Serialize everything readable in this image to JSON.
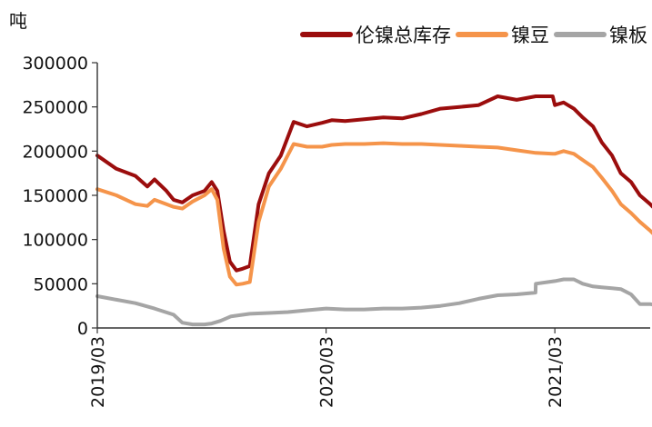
{
  "chart_data": {
    "type": "line",
    "title": "",
    "ylabel": "吨",
    "xlabel": "",
    "ylim": [
      0,
      300000
    ],
    "yticks": [
      0,
      50000,
      100000,
      150000,
      200000,
      250000,
      300000
    ],
    "ytick_labels": [
      "0",
      "50000",
      "100000",
      "150000",
      "200000",
      "250000",
      "300000"
    ],
    "xlim": [
      "2019-03",
      "2021-08"
    ],
    "xtick_labels": [
      "2019/03",
      "2020/03",
      "2021/03"
    ],
    "xtick_dates": [
      "2019-03",
      "2020-03",
      "2021-03"
    ],
    "grid": false,
    "legend_position": "top-right",
    "series": [
      {
        "name": "伦镍总库存",
        "color": "#9b0d0d",
        "x": [
          "2019-03-01",
          "2019-04-01",
          "2019-05-01",
          "2019-05-20",
          "2019-06-01",
          "2019-06-20",
          "2019-07-01",
          "2019-07-15",
          "2019-08-01",
          "2019-08-20",
          "2019-09-01",
          "2019-09-10",
          "2019-09-20",
          "2019-09-30",
          "2019-10-10",
          "2019-10-20",
          "2019-11-01",
          "2019-11-15",
          "2019-12-01",
          "2019-12-20",
          "2020-01-10",
          "2020-02-01",
          "2020-02-25",
          "2020-03-10",
          "2020-04-01",
          "2020-05-01",
          "2020-06-01",
          "2020-07-01",
          "2020-08-01",
          "2020-09-01",
          "2020-10-01",
          "2020-11-01",
          "2020-12-01",
          "2021-01-01",
          "2021-02-01",
          "2021-02-28",
          "2021-03-01",
          "2021-03-15",
          "2021-04-01",
          "2021-04-15",
          "2021-05-01",
          "2021-05-15",
          "2021-06-01",
          "2021-06-15",
          "2021-07-01",
          "2021-07-15",
          "2021-08-01",
          "2021-08-15",
          "2021-08-25"
        ],
        "values": [
          195000,
          180000,
          172000,
          160000,
          168000,
          155000,
          145000,
          142000,
          150000,
          155000,
          165000,
          155000,
          110000,
          75000,
          65000,
          67000,
          70000,
          140000,
          175000,
          195000,
          233000,
          228000,
          232000,
          235000,
          234000,
          236000,
          238000,
          237000,
          242000,
          248000,
          250000,
          252000,
          262000,
          258000,
          262000,
          262000,
          252000,
          255000,
          248000,
          238000,
          228000,
          210000,
          195000,
          175000,
          165000,
          150000,
          140000,
          130000,
          117000
        ]
      },
      {
        "name": "镍豆",
        "color": "#f5944a",
        "x": [
          "2019-03-01",
          "2019-04-01",
          "2019-05-01",
          "2019-05-20",
          "2019-06-01",
          "2019-06-20",
          "2019-07-01",
          "2019-07-15",
          "2019-08-01",
          "2019-08-20",
          "2019-09-01",
          "2019-09-10",
          "2019-09-20",
          "2019-09-30",
          "2019-10-10",
          "2019-10-20",
          "2019-11-01",
          "2019-11-15",
          "2019-12-01",
          "2019-12-20",
          "2020-01-10",
          "2020-02-01",
          "2020-02-25",
          "2020-03-10",
          "2020-04-01",
          "2020-05-01",
          "2020-06-01",
          "2020-07-01",
          "2020-08-01",
          "2020-09-01",
          "2020-10-01",
          "2020-11-01",
          "2020-12-01",
          "2021-01-01",
          "2021-02-01",
          "2021-02-28",
          "2021-03-01",
          "2021-03-15",
          "2021-04-01",
          "2021-04-15",
          "2021-05-01",
          "2021-05-15",
          "2021-06-01",
          "2021-06-15",
          "2021-07-01",
          "2021-07-15",
          "2021-08-01",
          "2021-08-15",
          "2021-08-25"
        ],
        "values": [
          157000,
          150000,
          140000,
          138000,
          145000,
          140000,
          137000,
          135000,
          143000,
          150000,
          157000,
          145000,
          90000,
          58000,
          49000,
          50000,
          52000,
          120000,
          160000,
          180000,
          208000,
          205000,
          205000,
          207000,
          208000,
          208000,
          209000,
          208000,
          208000,
          207000,
          206000,
          205000,
          204000,
          201000,
          198000,
          197000,
          197000,
          200000,
          197000,
          190000,
          182000,
          170000,
          155000,
          140000,
          130000,
          120000,
          110000,
          100000,
          92000
        ]
      },
      {
        "name": "镍板",
        "color": "#a5a5a5",
        "x": [
          "2019-03-01",
          "2019-04-01",
          "2019-05-01",
          "2019-06-01",
          "2019-07-01",
          "2019-07-15",
          "2019-08-01",
          "2019-08-20",
          "2019-09-01",
          "2019-09-15",
          "2019-10-01",
          "2019-11-01",
          "2019-12-01",
          "2020-01-01",
          "2020-02-01",
          "2020-03-01",
          "2020-04-01",
          "2020-05-01",
          "2020-06-01",
          "2020-07-01",
          "2020-08-01",
          "2020-09-01",
          "2020-10-01",
          "2020-11-01",
          "2020-12-01",
          "2021-01-01",
          "2021-01-31",
          "2021-02-01",
          "2021-03-01",
          "2021-03-15",
          "2021-04-01",
          "2021-04-15",
          "2021-05-01",
          "2021-05-15",
          "2021-06-01",
          "2021-06-15",
          "2021-07-01",
          "2021-07-15",
          "2021-08-01",
          "2021-08-15",
          "2021-08-25"
        ],
        "values": [
          36000,
          32000,
          28000,
          22000,
          15000,
          6000,
          4000,
          4000,
          5000,
          8000,
          13000,
          16000,
          17000,
          18000,
          20000,
          22000,
          21000,
          21000,
          22000,
          22000,
          23000,
          25000,
          28000,
          33000,
          37000,
          38000,
          40000,
          50000,
          53000,
          55000,
          55000,
          50000,
          47000,
          46000,
          45000,
          44000,
          38000,
          27000,
          27000,
          25000,
          19000
        ]
      }
    ]
  }
}
